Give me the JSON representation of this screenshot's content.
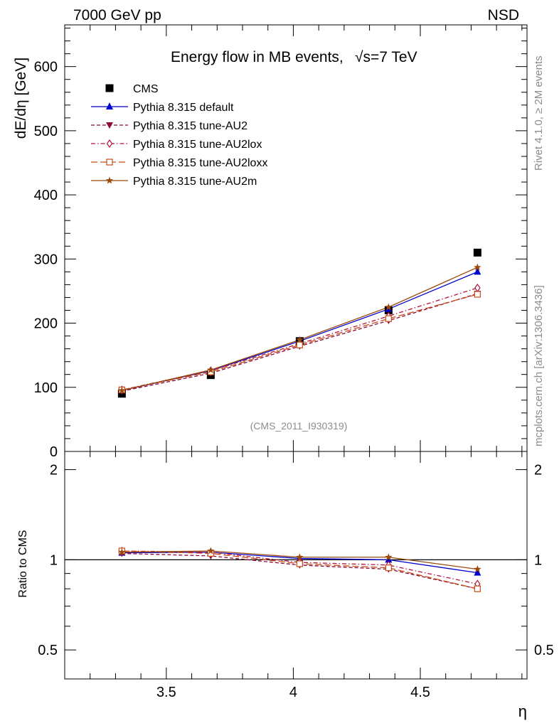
{
  "header": {
    "left": "7000 GeV pp",
    "right": "NSD"
  },
  "side_labels": {
    "rivet": "Rivet 4.1.0, ≥ 2M events",
    "mcplots": "mcplots.cern.ch [arXiv:1306.3436]"
  },
  "chart_data": [
    {
      "type": "scatter",
      "panel": "main",
      "title": "Energy flow in MB events,",
      "title_sqrt": "√s=7 TeV",
      "ylabel": "dE/dη [GeV]",
      "xlabel": "η",
      "analysis_label": "(CMS_2011_I930319)",
      "xlim": [
        3.1,
        4.92
      ],
      "ylim": [
        0,
        665
      ],
      "x_ticks": [
        3.5,
        4,
        4.5
      ],
      "x_tick_labels": [
        "3.5",
        "4",
        "4.5"
      ],
      "y_ticks": [
        0,
        100,
        200,
        300,
        400,
        500,
        600
      ],
      "y_tick_labels": [
        "0",
        "100",
        "200",
        "300",
        "400",
        "500",
        "600"
      ],
      "x": [
        3.325,
        3.675,
        4.025,
        4.375,
        4.725
      ],
      "series": [
        {
          "name": "CMS",
          "color": "#000000",
          "marker": "square",
          "line": "none",
          "values": [
            90,
            119,
            172,
            220,
            310
          ]
        },
        {
          "name": "Pythia 8.315 default",
          "color": "#0000cc",
          "marker": "triangle-up",
          "line": "solid",
          "values": [
            95,
            126,
            172,
            222,
            280
          ]
        },
        {
          "name": "Pythia 8.315 tune-AU2",
          "color": "#8b0a3c",
          "marker": "triangle-down",
          "line": "dashed",
          "values": [
            94,
            122,
            164,
            204,
            246
          ]
        },
        {
          "name": "Pythia 8.315 tune-AU2lox",
          "color": "#b3123a",
          "marker": "diamond-open",
          "line": "dashdot",
          "values": [
            96,
            126,
            168,
            211,
            255
          ]
        },
        {
          "name": "Pythia 8.315 tune-AU2loxx",
          "color": "#c84c14",
          "marker": "square-open",
          "line": "longdash",
          "values": [
            96,
            124,
            166,
            207,
            245
          ]
        },
        {
          "name": "Pythia 8.315 tune-AU2m",
          "color": "#9a4a0c",
          "marker": "star",
          "line": "solid",
          "values": [
            95,
            127,
            174,
            225,
            287
          ]
        }
      ]
    },
    {
      "type": "line",
      "panel": "ratio",
      "ylabel": "Ratio to CMS",
      "ylim": [
        0.4,
        2.3
      ],
      "y_ticks": [
        0.5,
        1,
        2
      ],
      "y_tick_labels": [
        "0.5",
        "1",
        "2"
      ],
      "reference": 1,
      "x": [
        3.325,
        3.675,
        4.025,
        4.375,
        4.725
      ],
      "series": [
        {
          "name": "Pythia 8.315 default",
          "values": [
            1.055,
            1.06,
            1.01,
            1.0,
            0.905
          ]
        },
        {
          "name": "Pythia 8.315 tune-AU2",
          "values": [
            1.05,
            1.03,
            0.96,
            0.93,
            0.8
          ]
        },
        {
          "name": "Pythia 8.315 tune-AU2lox",
          "values": [
            1.07,
            1.06,
            0.98,
            0.96,
            0.83
          ]
        },
        {
          "name": "Pythia 8.315 tune-AU2loxx",
          "values": [
            1.07,
            1.05,
            0.97,
            0.94,
            0.8
          ]
        },
        {
          "name": "Pythia 8.315 tune-AU2m",
          "values": [
            1.06,
            1.07,
            1.02,
            1.02,
            0.93
          ]
        }
      ]
    }
  ]
}
